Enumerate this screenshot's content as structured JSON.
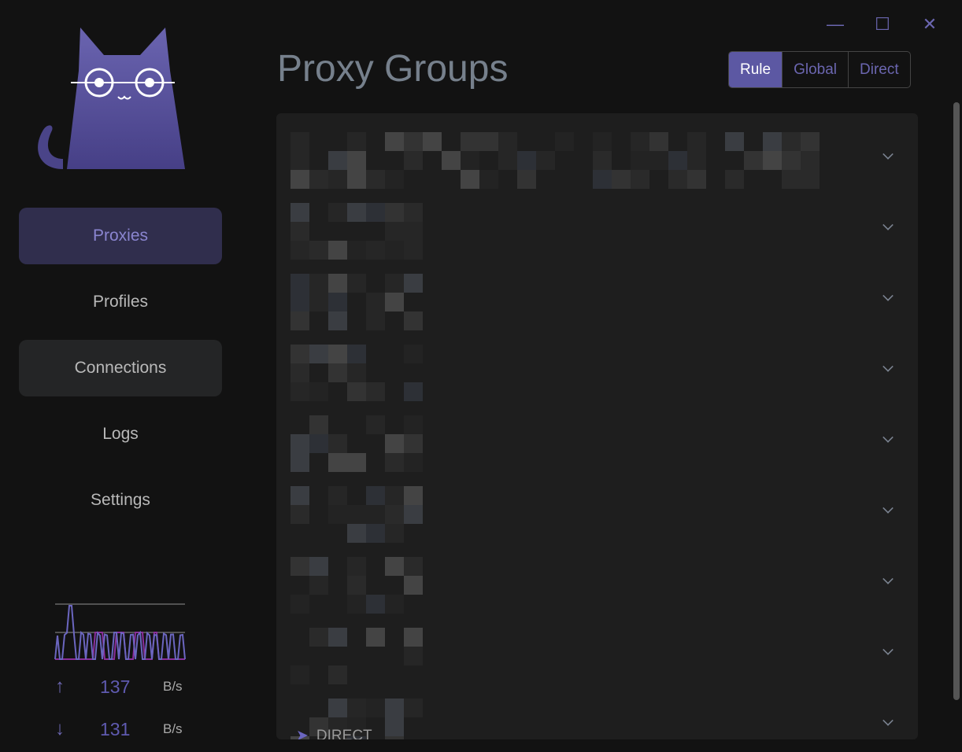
{
  "window": {
    "minimize": "—",
    "maximize": "☐",
    "close": "✕"
  },
  "sidebar": {
    "items": [
      {
        "label": "Proxies"
      },
      {
        "label": "Profiles"
      },
      {
        "label": "Connections"
      },
      {
        "label": "Logs"
      },
      {
        "label": "Settings"
      }
    ]
  },
  "traffic": {
    "upload": "137",
    "download": "131",
    "unit": "B/s",
    "up_icon": "arrow-up",
    "down_icon": "arrow-down"
  },
  "header": {
    "title": "Proxy Groups",
    "modes": [
      "Rule",
      "Global",
      "Direct"
    ],
    "selected_mode": "Rule"
  },
  "groups": {
    "count": 9,
    "last_selected": "DIRECT"
  },
  "colors": {
    "accent": "#5c58a3",
    "background": "#121212"
  }
}
